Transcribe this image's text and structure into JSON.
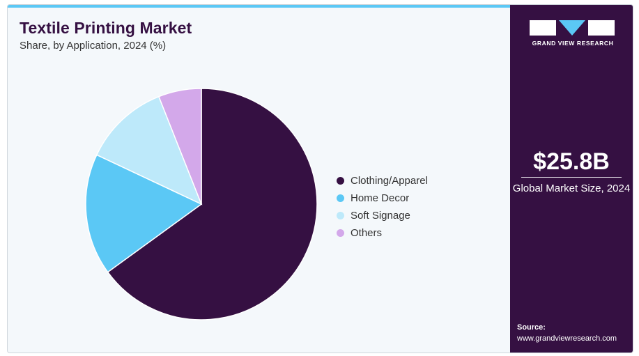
{
  "header": {
    "title": "Textile Printing Market",
    "subtitle": "Share, by Application, 2024 (%)"
  },
  "chart_data": {
    "type": "pie",
    "title": "Textile Printing Market",
    "subtitle": "Share, by Application, 2024 (%)",
    "categories": [
      "Clothing/Apparel",
      "Home Decor",
      "Soft Signage",
      "Others"
    ],
    "values": [
      65,
      17,
      12,
      6
    ],
    "colors": [
      "#351042",
      "#5bc8f5",
      "#bde9fa",
      "#d3a8ea"
    ],
    "legend_position": "right"
  },
  "sidebar": {
    "brand": "GRAND VIEW RESEARCH",
    "market_value": "$25.8B",
    "market_caption": "Global Market Size, 2024",
    "source_label": "Source:",
    "source_url": "www.grandviewresearch.com"
  },
  "colors": {
    "accent_dark": "#351042",
    "accent_light": "#5bc8f5",
    "background": "#f4f8fb"
  }
}
